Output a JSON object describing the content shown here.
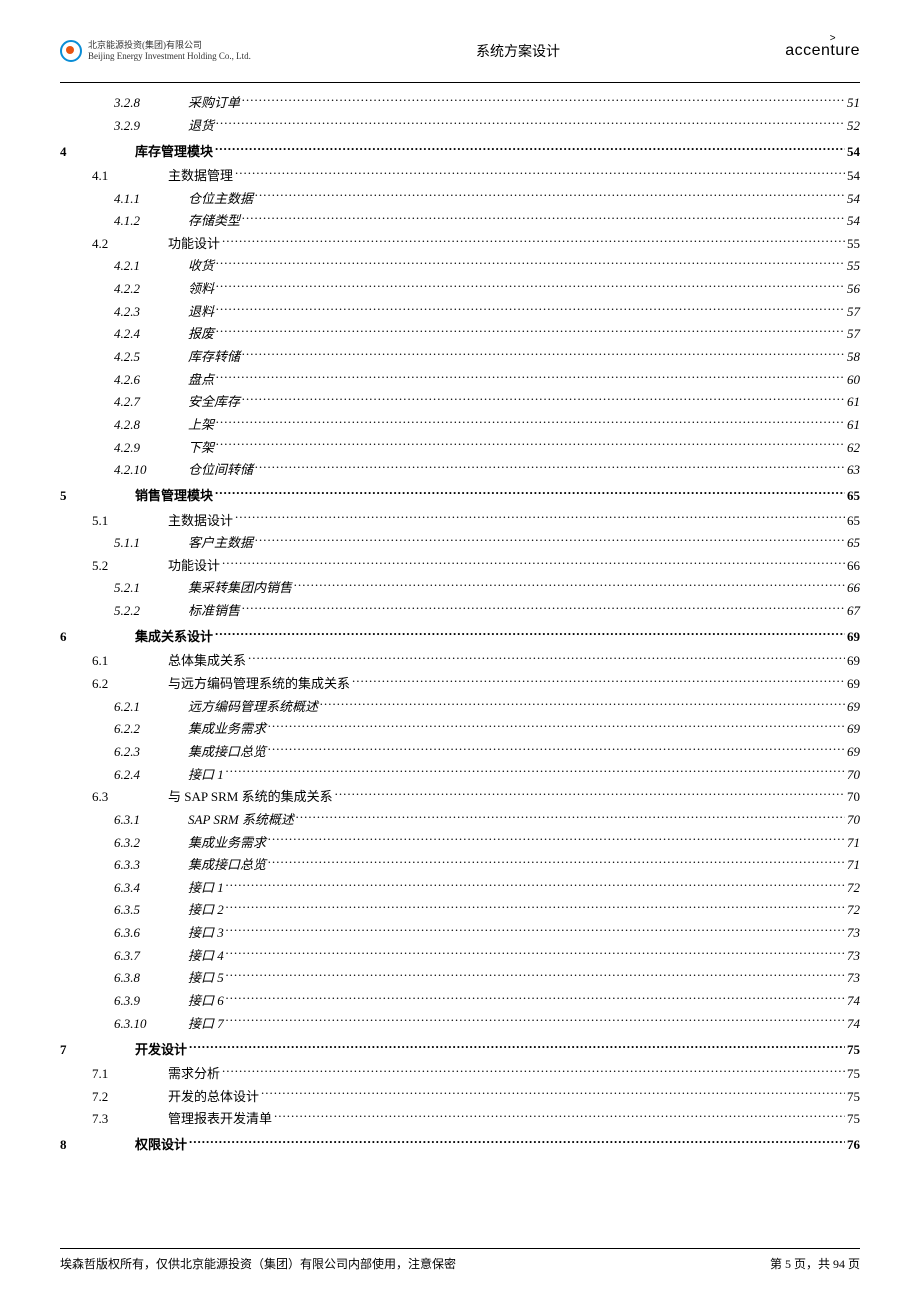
{
  "header": {
    "company_cn": "北京能源投资(集团)有限公司",
    "company_en": "Beijing Energy Investment Holding Co., Ltd.",
    "doc_title": "系统方案设计",
    "brand": "accenture"
  },
  "footer": {
    "copyright": "埃森哲版权所有，仅供北京能源投资（集团）有限公司内部使用，注意保密",
    "page_info": "第 5 页，共 94 页"
  },
  "toc": [
    {
      "level": 3,
      "num": "3.2.8",
      "title": "采购订单",
      "page": "51"
    },
    {
      "level": 3,
      "num": "3.2.9",
      "title": "退货",
      "page": "52"
    },
    {
      "level": 1,
      "num": "4",
      "title": "库存管理模块",
      "page": "54"
    },
    {
      "level": 2,
      "num": "4.1",
      "title": "主数据管理",
      "page": "54"
    },
    {
      "level": 3,
      "num": "4.1.1",
      "title": "仓位主数据",
      "page": "54"
    },
    {
      "level": 3,
      "num": "4.1.2",
      "title": "存储类型",
      "page": "54"
    },
    {
      "level": 2,
      "num": "4.2",
      "title": "功能设计",
      "page": "55"
    },
    {
      "level": 3,
      "num": "4.2.1",
      "title": "收货",
      "page": "55"
    },
    {
      "level": 3,
      "num": "4.2.2",
      "title": "领料",
      "page": "56"
    },
    {
      "level": 3,
      "num": "4.2.3",
      "title": "退料",
      "page": "57"
    },
    {
      "level": 3,
      "num": "4.2.4",
      "title": "报废",
      "page": "57"
    },
    {
      "level": 3,
      "num": "4.2.5",
      "title": "库存转储",
      "page": "58"
    },
    {
      "level": 3,
      "num": "4.2.6",
      "title": "盘点",
      "page": "60"
    },
    {
      "level": 3,
      "num": "4.2.7",
      "title": "安全库存",
      "page": "61"
    },
    {
      "level": 3,
      "num": "4.2.8",
      "title": "上架",
      "page": "61"
    },
    {
      "level": 3,
      "num": "4.2.9",
      "title": "下架",
      "page": "62"
    },
    {
      "level": 3,
      "num": "4.2.10",
      "title": "仓位间转储",
      "page": "63"
    },
    {
      "level": 1,
      "num": "5",
      "title": "销售管理模块",
      "page": "65"
    },
    {
      "level": 2,
      "num": "5.1",
      "title": "主数据设计",
      "page": "65"
    },
    {
      "level": 3,
      "num": "5.1.1",
      "title": "客户主数据",
      "page": "65"
    },
    {
      "level": 2,
      "num": "5.2",
      "title": "功能设计",
      "page": "66"
    },
    {
      "level": 3,
      "num": "5.2.1",
      "title": "集采转集团内销售",
      "page": "66"
    },
    {
      "level": 3,
      "num": "5.2.2",
      "title": "标准销售",
      "page": "67"
    },
    {
      "level": 1,
      "num": "6",
      "title": "集成关系设计",
      "page": "69"
    },
    {
      "level": 2,
      "num": "6.1",
      "title": "总体集成关系",
      "page": "69"
    },
    {
      "level": 2,
      "num": "6.2",
      "title": "与远方编码管理系统的集成关系",
      "page": "69"
    },
    {
      "level": 3,
      "num": "6.2.1",
      "title": "远方编码管理系统概述",
      "page": "69"
    },
    {
      "level": 3,
      "num": "6.2.2",
      "title": "集成业务需求",
      "page": "69"
    },
    {
      "level": 3,
      "num": "6.2.3",
      "title": "集成接口总览",
      "page": "69"
    },
    {
      "level": 3,
      "num": "6.2.4",
      "title": "接口 1",
      "page": "70"
    },
    {
      "level": 2,
      "num": "6.3",
      "title": "与 SAP SRM 系统的集成关系",
      "page": "70"
    },
    {
      "level": 3,
      "num": "6.3.1",
      "title": "SAP SRM 系统概述",
      "page": "70"
    },
    {
      "level": 3,
      "num": "6.3.2",
      "title": "集成业务需求",
      "page": "71"
    },
    {
      "level": 3,
      "num": "6.3.3",
      "title": "集成接口总览",
      "page": "71"
    },
    {
      "level": 3,
      "num": "6.3.4",
      "title": "接口 1",
      "page": "72"
    },
    {
      "level": 3,
      "num": "6.3.5",
      "title": "接口 2",
      "page": "72"
    },
    {
      "level": 3,
      "num": "6.3.6",
      "title": "接口 3",
      "page": "73"
    },
    {
      "level": 3,
      "num": "6.3.7",
      "title": "接口 4",
      "page": "73"
    },
    {
      "level": 3,
      "num": "6.3.8",
      "title": "接口 5",
      "page": "73"
    },
    {
      "level": 3,
      "num": "6.3.9",
      "title": "接口 6",
      "page": "74"
    },
    {
      "level": 3,
      "num": "6.3.10",
      "title": "接口 7",
      "page": "74"
    },
    {
      "level": 1,
      "num": "7",
      "title": "开发设计",
      "page": "75"
    },
    {
      "level": 2,
      "num": "7.1",
      "title": "需求分析",
      "page": "75"
    },
    {
      "level": 2,
      "num": "7.2",
      "title": "开发的总体设计",
      "page": "75"
    },
    {
      "level": 2,
      "num": "7.3",
      "title": "管理报表开发清单",
      "page": "75"
    },
    {
      "level": 1,
      "num": "8",
      "title": "权限设计",
      "page": "76"
    }
  ]
}
